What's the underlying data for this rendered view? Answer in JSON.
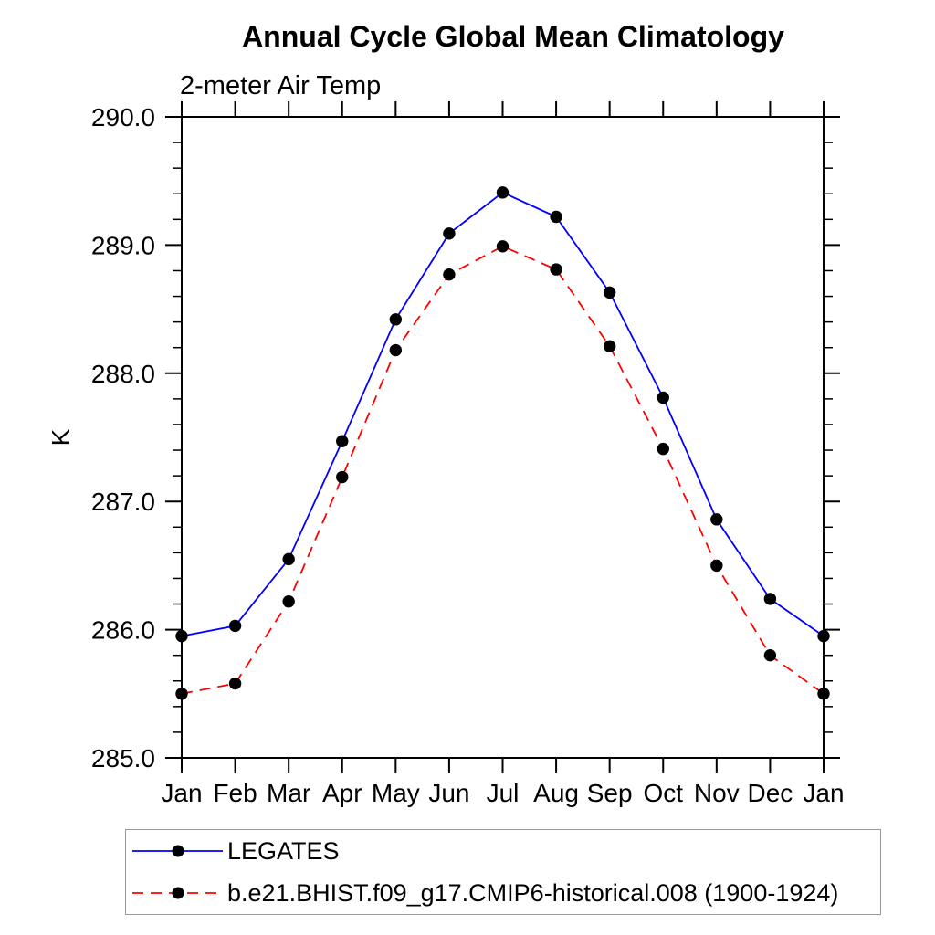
{
  "chart_data": {
    "type": "line",
    "title": "Annual Cycle Global Mean Climatology",
    "subtitle": "2-meter Air Temp",
    "ylabel": "K",
    "categories": [
      "Jan",
      "Feb",
      "Mar",
      "Apr",
      "May",
      "Jun",
      "Jul",
      "Aug",
      "Sep",
      "Oct",
      "Nov",
      "Dec",
      "Jan"
    ],
    "ylim": [
      285.0,
      290.0
    ],
    "ytick_values": [
      285.0,
      286.0,
      287.0,
      288.0,
      289.0,
      290.0
    ],
    "ytick_labels": [
      "285.0",
      "286.0",
      "287.0",
      "288.0",
      "289.0",
      "290.0"
    ],
    "y_minor_step": 0.2,
    "grid": false,
    "legend_position": "bottom-left",
    "axis_color": "#000000",
    "marker_color": "#000000",
    "background_color": "#ffffff",
    "series": [
      {
        "name": "LEGATES",
        "color": "#0000ff",
        "line_style": "solid",
        "marker": "dot",
        "values": [
          285.95,
          286.03,
          286.55,
          287.47,
          288.42,
          289.09,
          289.41,
          289.22,
          288.63,
          287.81,
          286.86,
          286.24,
          285.95
        ]
      },
      {
        "name": "b.e21.BHIST.f09_g17.CMIP6-historical.008 (1900-1924)",
        "color": "#ff0000",
        "line_style": "dashed",
        "marker": "dot",
        "values": [
          285.5,
          285.58,
          286.22,
          287.19,
          288.18,
          288.77,
          288.99,
          288.81,
          288.21,
          287.41,
          286.5,
          285.8,
          285.5
        ]
      }
    ]
  }
}
